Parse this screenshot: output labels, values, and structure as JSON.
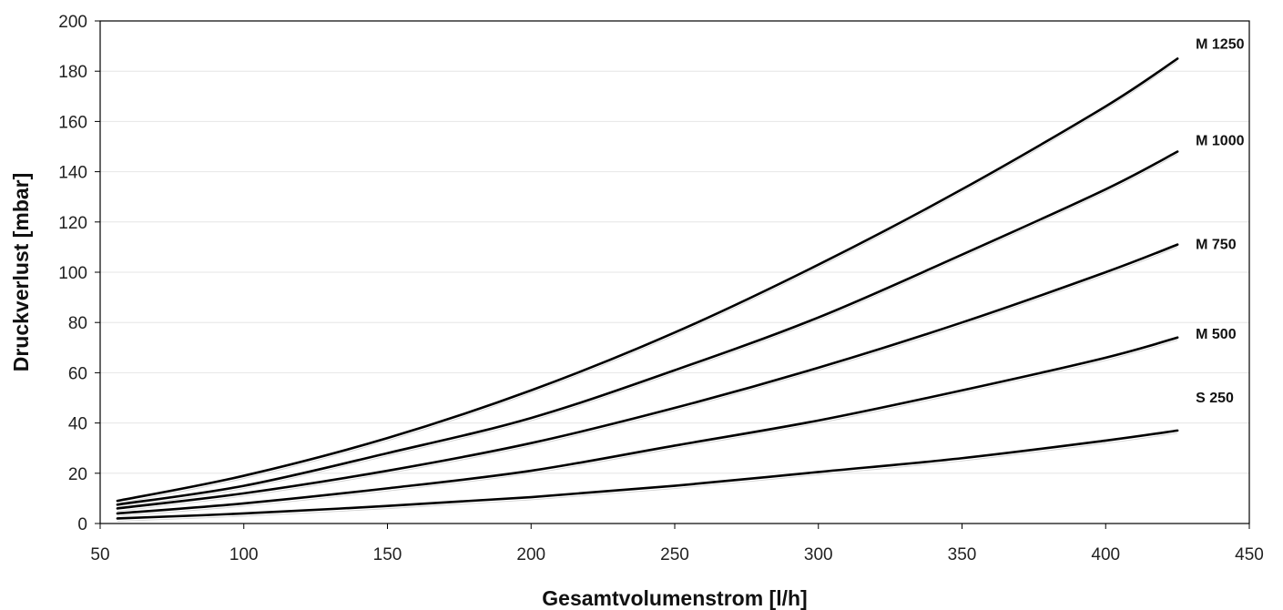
{
  "chart_data": {
    "type": "line",
    "title": "",
    "xlabel": "Gesamtvolumenstrom [l/h]",
    "ylabel": "Druckverlust [mbar]",
    "xlim": [
      50,
      450
    ],
    "ylim": [
      0,
      200
    ],
    "xticks": [
      50,
      100,
      150,
      200,
      250,
      300,
      350,
      400,
      450
    ],
    "yticks": [
      0,
      20,
      40,
      60,
      80,
      100,
      120,
      140,
      160,
      180,
      200
    ],
    "grid": "horizontal",
    "legend": "inline labels at line ends",
    "line_color": "#000000",
    "grid_color": "#e6e6e6",
    "x": [
      56,
      100,
      150,
      200,
      250,
      300,
      350,
      400,
      425
    ],
    "series": [
      {
        "name": "M 1250",
        "values": [
          9,
          19,
          34,
          53,
          76,
          103,
          133,
          166,
          185
        ]
      },
      {
        "name": "M 1000",
        "values": [
          7.5,
          15,
          28,
          42,
          61,
          82,
          107,
          133,
          148
        ]
      },
      {
        "name": "M 750",
        "values": [
          6,
          12,
          21,
          32,
          46,
          62,
          80,
          100,
          111
        ]
      },
      {
        "name": "M 500",
        "values": [
          4,
          8,
          14,
          21,
          31,
          41,
          53,
          66,
          74
        ]
      },
      {
        "name": "S 250",
        "values": [
          2,
          4,
          7,
          10.5,
          15,
          20.5,
          26,
          33,
          37
        ]
      }
    ]
  }
}
